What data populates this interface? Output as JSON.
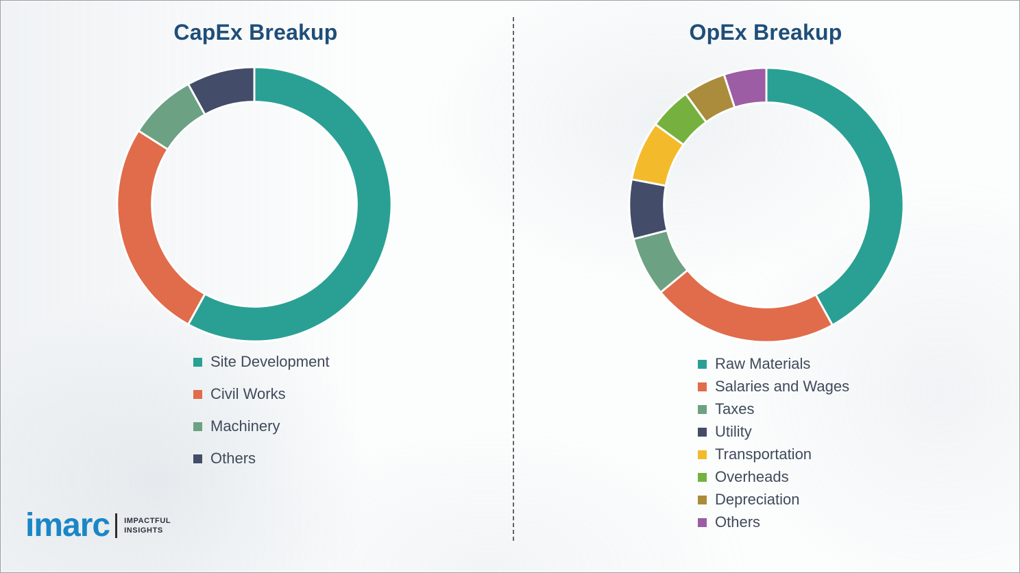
{
  "chart_data": [
    {
      "type": "pie",
      "donut": true,
      "title": "CapEx Breakup",
      "labels": [
        "Site Development",
        "Civil Works",
        "Machinery",
        "Others"
      ],
      "values": [
        58,
        26,
        8,
        8
      ],
      "colors": [
        "#2aa094",
        "#e06c4b",
        "#6ca184",
        "#434c68"
      ],
      "legend_position": "bottom",
      "start_angle_deg": 0,
      "direction": "clockwise"
    },
    {
      "type": "pie",
      "donut": true,
      "title": "OpEx Breakup",
      "labels": [
        "Raw Materials",
        "Salaries and Wages",
        "Taxes",
        "Utility",
        "Transportation",
        "Overheads",
        "Depreciation",
        "Others"
      ],
      "values": [
        42,
        22,
        7,
        7,
        7,
        5,
        5,
        5
      ],
      "colors": [
        "#2aa094",
        "#e06c4b",
        "#6ca184",
        "#434c68",
        "#f3bb2c",
        "#76b13f",
        "#aa8c3c",
        "#9c5da4"
      ],
      "legend_position": "bottom",
      "start_angle_deg": 0,
      "direction": "clockwise"
    }
  ],
  "logo": {
    "name": "imarc",
    "tagline_line1": "IMPACTFUL",
    "tagline_line2": "INSIGHTS",
    "brand_color": "#1b86c6"
  }
}
